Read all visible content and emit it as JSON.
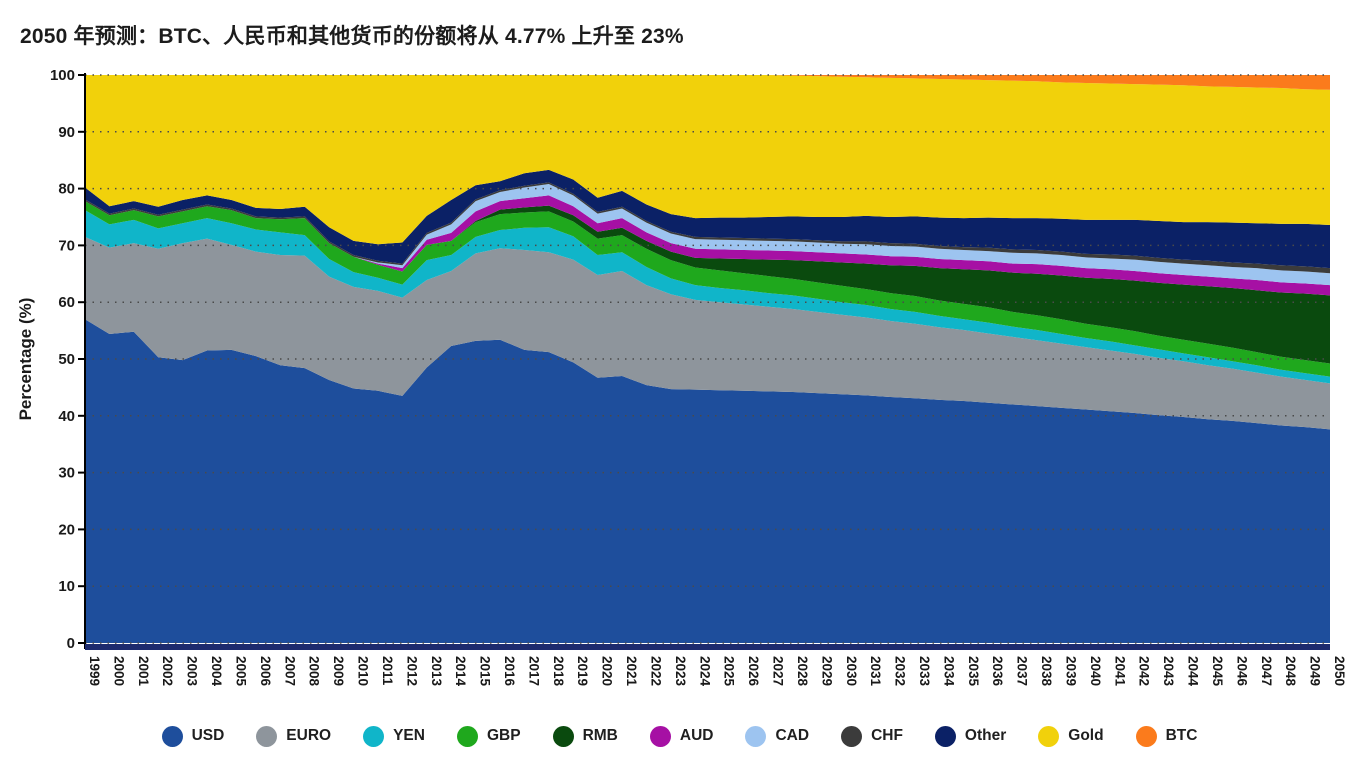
{
  "page": {
    "title": "2050 年预测：BTC、人民币和其他货币的份额将从 4.77% 上升至 23%"
  },
  "style": {
    "axis_bar_color": "#1d2b6e",
    "axis_line_color": "#000000",
    "grid_color": "#4a4a4a",
    "tick_label_color": "#1a1a1a"
  },
  "chart_data": {
    "type": "area",
    "stacked": true,
    "title": "2050 年预测：BTC、人民币和其他货币的份额将从 4.77% 上升至 23%",
    "xlabel": "",
    "ylabel": "Percentage (%)",
    "ylim": [
      0,
      100
    ],
    "yticks": [
      0,
      10,
      20,
      30,
      40,
      50,
      60,
      70,
      80,
      90,
      100
    ],
    "grid": "dotted-horizontal",
    "legend_position": "bottom",
    "x": [
      1999,
      2000,
      2001,
      2002,
      2003,
      2004,
      2005,
      2006,
      2007,
      2008,
      2009,
      2010,
      2011,
      2012,
      2013,
      2014,
      2015,
      2016,
      2017,
      2018,
      2019,
      2020,
      2021,
      2022,
      2023,
      2024,
      2025,
      2026,
      2027,
      2028,
      2029,
      2030,
      2031,
      2032,
      2033,
      2034,
      2035,
      2036,
      2037,
      2038,
      2039,
      2040,
      2041,
      2042,
      2043,
      2044,
      2045,
      2046,
      2047,
      2048,
      2049,
      2050
    ],
    "series": [
      {
        "name": "USD",
        "color": "#1e4e9c",
        "values": [
          57.0,
          54.4,
          54.8,
          50.3,
          49.8,
          51.5,
          51.6,
          50.5,
          48.9,
          48.4,
          46.3,
          44.8,
          44.4,
          43.5,
          48.5,
          52.3,
          53.2,
          53.4,
          51.6,
          51.2,
          49.4,
          46.7,
          47.0,
          45.4,
          44.7,
          44.6,
          44.5,
          44.4,
          44.3,
          44.2,
          44.0,
          43.8,
          43.6,
          43.3,
          43.1,
          42.8,
          42.6,
          42.3,
          42.0,
          41.7,
          41.4,
          41.1,
          40.8,
          40.5,
          40.1,
          39.8,
          39.4,
          39.1,
          38.7,
          38.3,
          38.0,
          37.6
        ]
      },
      {
        "name": "EURO",
        "color": "#8e959c",
        "values": [
          14.5,
          15.2,
          15.6,
          19.1,
          20.6,
          19.7,
          18.5,
          18.4,
          19.4,
          19.8,
          18.2,
          17.9,
          17.6,
          17.3,
          15.4,
          13.2,
          15.4,
          16.1,
          17.6,
          17.6,
          18.1,
          18.1,
          18.5,
          17.6,
          16.7,
          15.8,
          15.5,
          15.2,
          14.9,
          14.6,
          14.3,
          14.0,
          13.7,
          13.4,
          13.1,
          12.8,
          12.5,
          12.2,
          11.9,
          11.6,
          11.3,
          11.0,
          10.7,
          10.4,
          10.1,
          9.8,
          9.5,
          9.2,
          8.9,
          8.6,
          8.3,
          8.1
        ]
      },
      {
        "name": "YEN",
        "color": "#10b5c9",
        "values": [
          4.7,
          4.1,
          4.1,
          3.6,
          3.5,
          3.6,
          3.8,
          3.9,
          4.0,
          3.6,
          3.1,
          2.6,
          2.3,
          2.3,
          3.5,
          2.8,
          2.9,
          3.2,
          3.9,
          4.4,
          4.1,
          3.5,
          3.3,
          3.2,
          2.8,
          2.6,
          2.5,
          2.5,
          2.4,
          2.4,
          2.3,
          2.2,
          2.2,
          2.1,
          2.1,
          2.0,
          1.9,
          1.9,
          1.8,
          1.8,
          1.7,
          1.6,
          1.6,
          1.5,
          1.5,
          1.4,
          1.4,
          1.3,
          1.3,
          1.2,
          1.2,
          1.2
        ]
      },
      {
        "name": "GBP",
        "color": "#1fa81d",
        "values": [
          1.6,
          1.6,
          1.7,
          2.1,
          2.1,
          2.1,
          2.3,
          2.0,
          2.3,
          3.0,
          2.8,
          2.7,
          2.3,
          2.3,
          2.7,
          2.5,
          2.6,
          2.8,
          2.7,
          2.8,
          2.6,
          2.9,
          3.0,
          3.2,
          3.2,
          3.1,
          3.1,
          3.0,
          3.0,
          2.9,
          2.9,
          2.9,
          2.8,
          2.8,
          2.8,
          2.7,
          2.7,
          2.7,
          2.6,
          2.6,
          2.6,
          2.5,
          2.5,
          2.5,
          2.4,
          2.4,
          2.4,
          2.4,
          2.3,
          2.3,
          2.3,
          2.3
        ]
      },
      {
        "name": "RMB",
        "color": "#0a4a0e",
        "values": [
          0,
          0,
          0,
          0,
          0,
          0,
          0,
          0,
          0,
          0,
          0,
          0,
          0,
          0,
          0,
          0,
          0.2,
          0.8,
          0.9,
          1.0,
          1.1,
          1.2,
          1.3,
          1.4,
          1.5,
          1.7,
          2.1,
          2.5,
          2.9,
          3.3,
          3.7,
          4.1,
          4.5,
          4.9,
          5.3,
          5.7,
          6.1,
          6.5,
          6.9,
          7.3,
          7.7,
          8.1,
          8.5,
          8.9,
          9.3,
          9.7,
          10.1,
          10.5,
          10.9,
          11.3,
          11.7,
          12.0
        ]
      },
      {
        "name": "AUD",
        "color": "#a610a4",
        "values": [
          0,
          0,
          0,
          0,
          0,
          0,
          0,
          0,
          0,
          0,
          0,
          0,
          0.2,
          0.6,
          0.9,
          1.4,
          1.7,
          1.5,
          1.6,
          1.8,
          1.6,
          1.5,
          1.7,
          1.5,
          1.5,
          1.6,
          1.6,
          1.6,
          1.6,
          1.6,
          1.6,
          1.6,
          1.6,
          1.6,
          1.6,
          1.6,
          1.6,
          1.6,
          1.6,
          1.7,
          1.7,
          1.7,
          1.7,
          1.7,
          1.7,
          1.7,
          1.7,
          1.7,
          1.8,
          1.8,
          1.8,
          1.8
        ]
      },
      {
        "name": "CAD",
        "color": "#9dc4f0",
        "values": [
          0,
          0,
          0,
          0,
          0,
          0,
          0,
          0,
          0,
          0,
          0,
          0,
          0.2,
          0.5,
          0.9,
          1.5,
          1.8,
          1.6,
          1.9,
          2.0,
          1.9,
          1.7,
          1.7,
          1.7,
          1.7,
          1.7,
          1.7,
          1.7,
          1.7,
          1.7,
          1.7,
          1.7,
          1.8,
          1.8,
          1.8,
          1.8,
          1.8,
          1.8,
          1.9,
          1.9,
          1.9,
          1.9,
          1.9,
          2.0,
          2.0,
          2.0,
          2.0,
          2.0,
          2.1,
          2.1,
          2.1,
          2.1
        ]
      },
      {
        "name": "CHF",
        "color": "#3b3b3b",
        "values": [
          0.3,
          0.3,
          0.3,
          0.3,
          0.3,
          0.3,
          0.3,
          0.3,
          0.3,
          0.3,
          0.3,
          0.3,
          0.3,
          0.3,
          0.3,
          0.3,
          0.3,
          0.3,
          0.3,
          0.3,
          0.3,
          0.3,
          0.3,
          0.3,
          0.3,
          0.4,
          0.4,
          0.4,
          0.4,
          0.4,
          0.4,
          0.4,
          0.5,
          0.5,
          0.5,
          0.5,
          0.5,
          0.6,
          0.6,
          0.6,
          0.6,
          0.6,
          0.7,
          0.7,
          0.7,
          0.7,
          0.8,
          0.8,
          0.8,
          0.9,
          0.9,
          0.9
        ]
      },
      {
        "name": "Other",
        "color": "#0b2166",
        "values": [
          2.1,
          1.3,
          1.3,
          1.4,
          1.7,
          1.6,
          1.5,
          1.5,
          1.5,
          1.7,
          2.5,
          2.5,
          2.9,
          3.7,
          3.0,
          4.0,
          2.5,
          1.6,
          2.2,
          2.2,
          2.5,
          2.5,
          2.8,
          2.9,
          3.1,
          3.3,
          3.5,
          3.6,
          3.8,
          4.0,
          4.1,
          4.3,
          4.5,
          4.6,
          4.8,
          5.0,
          5.1,
          5.3,
          5.5,
          5.6,
          5.8,
          6.0,
          6.1,
          6.3,
          6.5,
          6.6,
          6.8,
          7.0,
          7.1,
          7.3,
          7.5,
          7.6
        ]
      },
      {
        "name": "Gold",
        "color": "#f1d10b",
        "values": [
          19.8,
          23.1,
          22.2,
          23.2,
          22.0,
          21.2,
          22.0,
          23.4,
          23.6,
          23.2,
          26.8,
          29.2,
          29.8,
          29.5,
          24.8,
          22.0,
          19.4,
          18.7,
          17.3,
          16.7,
          18.4,
          21.6,
          20.4,
          22.8,
          24.5,
          25.2,
          25.1,
          25.1,
          25.0,
          24.8,
          24.8,
          24.7,
          24.4,
          24.5,
          24.3,
          24.4,
          24.4,
          24.2,
          24.2,
          24.1,
          24.0,
          24.1,
          24.0,
          23.9,
          24.0,
          24.1,
          23.9,
          23.9,
          23.9,
          23.9,
          23.7,
          23.8
        ]
      },
      {
        "name": "BTC",
        "color": "#fb7b1c",
        "values": [
          0,
          0,
          0,
          0,
          0,
          0,
          0,
          0,
          0,
          0,
          0,
          0,
          0,
          0,
          0,
          0,
          0,
          0,
          0,
          0,
          0,
          0,
          0,
          0,
          0,
          0,
          0,
          0,
          0,
          0.1,
          0.2,
          0.3,
          0.4,
          0.5,
          0.6,
          0.7,
          0.8,
          0.9,
          1.0,
          1.1,
          1.3,
          1.4,
          1.5,
          1.6,
          1.7,
          1.8,
          2.0,
          2.1,
          2.2,
          2.3,
          2.5,
          2.6
        ]
      }
    ]
  }
}
